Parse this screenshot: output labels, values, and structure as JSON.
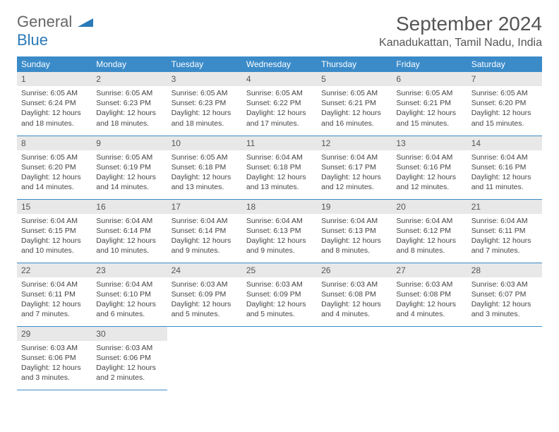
{
  "logo": {
    "line1": "General",
    "line2": "Blue",
    "color1": "#666666",
    "color2": "#2a7ab8"
  },
  "title": "September 2024",
  "location": "Kanadukattan, Tamil Nadu, India",
  "colors": {
    "header_bg": "#3b8bc9",
    "header_fg": "#ffffff",
    "daynum_bg": "#e8e8e8",
    "row_border": "#3b8bc9",
    "text": "#444444"
  },
  "weekdays": [
    "Sunday",
    "Monday",
    "Tuesday",
    "Wednesday",
    "Thursday",
    "Friday",
    "Saturday"
  ],
  "grid": {
    "cols": 7,
    "rows": 5,
    "first_weekday_index": 0,
    "days_in_month": 30
  },
  "days": [
    {
      "n": 1,
      "sunrise": "6:05 AM",
      "sunset": "6:24 PM",
      "dl_h": 12,
      "dl_m": 18
    },
    {
      "n": 2,
      "sunrise": "6:05 AM",
      "sunset": "6:23 PM",
      "dl_h": 12,
      "dl_m": 18
    },
    {
      "n": 3,
      "sunrise": "6:05 AM",
      "sunset": "6:23 PM",
      "dl_h": 12,
      "dl_m": 18
    },
    {
      "n": 4,
      "sunrise": "6:05 AM",
      "sunset": "6:22 PM",
      "dl_h": 12,
      "dl_m": 17
    },
    {
      "n": 5,
      "sunrise": "6:05 AM",
      "sunset": "6:21 PM",
      "dl_h": 12,
      "dl_m": 16
    },
    {
      "n": 6,
      "sunrise": "6:05 AM",
      "sunset": "6:21 PM",
      "dl_h": 12,
      "dl_m": 15
    },
    {
      "n": 7,
      "sunrise": "6:05 AM",
      "sunset": "6:20 PM",
      "dl_h": 12,
      "dl_m": 15
    },
    {
      "n": 8,
      "sunrise": "6:05 AM",
      "sunset": "6:20 PM",
      "dl_h": 12,
      "dl_m": 14
    },
    {
      "n": 9,
      "sunrise": "6:05 AM",
      "sunset": "6:19 PM",
      "dl_h": 12,
      "dl_m": 14
    },
    {
      "n": 10,
      "sunrise": "6:05 AM",
      "sunset": "6:18 PM",
      "dl_h": 12,
      "dl_m": 13
    },
    {
      "n": 11,
      "sunrise": "6:04 AM",
      "sunset": "6:18 PM",
      "dl_h": 12,
      "dl_m": 13
    },
    {
      "n": 12,
      "sunrise": "6:04 AM",
      "sunset": "6:17 PM",
      "dl_h": 12,
      "dl_m": 12
    },
    {
      "n": 13,
      "sunrise": "6:04 AM",
      "sunset": "6:16 PM",
      "dl_h": 12,
      "dl_m": 12
    },
    {
      "n": 14,
      "sunrise": "6:04 AM",
      "sunset": "6:16 PM",
      "dl_h": 12,
      "dl_m": 11
    },
    {
      "n": 15,
      "sunrise": "6:04 AM",
      "sunset": "6:15 PM",
      "dl_h": 12,
      "dl_m": 10
    },
    {
      "n": 16,
      "sunrise": "6:04 AM",
      "sunset": "6:14 PM",
      "dl_h": 12,
      "dl_m": 10
    },
    {
      "n": 17,
      "sunrise": "6:04 AM",
      "sunset": "6:14 PM",
      "dl_h": 12,
      "dl_m": 9
    },
    {
      "n": 18,
      "sunrise": "6:04 AM",
      "sunset": "6:13 PM",
      "dl_h": 12,
      "dl_m": 9
    },
    {
      "n": 19,
      "sunrise": "6:04 AM",
      "sunset": "6:13 PM",
      "dl_h": 12,
      "dl_m": 8
    },
    {
      "n": 20,
      "sunrise": "6:04 AM",
      "sunset": "6:12 PM",
      "dl_h": 12,
      "dl_m": 8
    },
    {
      "n": 21,
      "sunrise": "6:04 AM",
      "sunset": "6:11 PM",
      "dl_h": 12,
      "dl_m": 7
    },
    {
      "n": 22,
      "sunrise": "6:04 AM",
      "sunset": "6:11 PM",
      "dl_h": 12,
      "dl_m": 7
    },
    {
      "n": 23,
      "sunrise": "6:04 AM",
      "sunset": "6:10 PM",
      "dl_h": 12,
      "dl_m": 6
    },
    {
      "n": 24,
      "sunrise": "6:03 AM",
      "sunset": "6:09 PM",
      "dl_h": 12,
      "dl_m": 5
    },
    {
      "n": 25,
      "sunrise": "6:03 AM",
      "sunset": "6:09 PM",
      "dl_h": 12,
      "dl_m": 5
    },
    {
      "n": 26,
      "sunrise": "6:03 AM",
      "sunset": "6:08 PM",
      "dl_h": 12,
      "dl_m": 4
    },
    {
      "n": 27,
      "sunrise": "6:03 AM",
      "sunset": "6:08 PM",
      "dl_h": 12,
      "dl_m": 4
    },
    {
      "n": 28,
      "sunrise": "6:03 AM",
      "sunset": "6:07 PM",
      "dl_h": 12,
      "dl_m": 3
    },
    {
      "n": 29,
      "sunrise": "6:03 AM",
      "sunset": "6:06 PM",
      "dl_h": 12,
      "dl_m": 3
    },
    {
      "n": 30,
      "sunrise": "6:03 AM",
      "sunset": "6:06 PM",
      "dl_h": 12,
      "dl_m": 2
    }
  ],
  "labels": {
    "sunrise": "Sunrise:",
    "sunset": "Sunset:",
    "daylight_prefix": "Daylight:",
    "hours_word": "hours",
    "and_word": "and",
    "minutes_word": "minutes."
  }
}
